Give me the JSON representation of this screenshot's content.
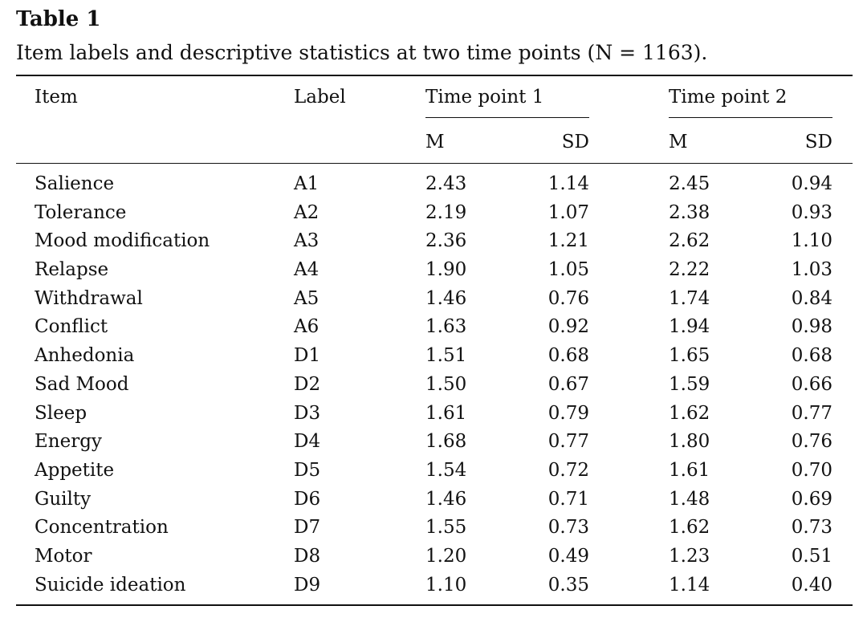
{
  "title": "Table 1",
  "caption": "Item labels and descriptive statistics at two time points (N = 1163).",
  "header": {
    "item": "Item",
    "label": "Label",
    "time_point_1": "Time point 1",
    "time_point_2": "Time point 2",
    "m1": "M",
    "sd1": "SD",
    "m2": "M",
    "sd2": "SD"
  },
  "rows": [
    {
      "item": "Salience",
      "label": "A1",
      "m1": "2.43",
      "sd1": "1.14",
      "m2": "2.45",
      "sd2": "0.94"
    },
    {
      "item": "Tolerance",
      "label": "A2",
      "m1": "2.19",
      "sd1": "1.07",
      "m2": "2.38",
      "sd2": "0.93"
    },
    {
      "item": "Mood modification",
      "label": "A3",
      "m1": "2.36",
      "sd1": "1.21",
      "m2": "2.62",
      "sd2": "1.10"
    },
    {
      "item": "Relapse",
      "label": "A4",
      "m1": "1.90",
      "sd1": "1.05",
      "m2": "2.22",
      "sd2": "1.03"
    },
    {
      "item": "Withdrawal",
      "label": "A5",
      "m1": "1.46",
      "sd1": "0.76",
      "m2": "1.74",
      "sd2": "0.84"
    },
    {
      "item": "Conflict",
      "label": "A6",
      "m1": "1.63",
      "sd1": "0.92",
      "m2": "1.94",
      "sd2": "0.98"
    },
    {
      "item": "Anhedonia",
      "label": "D1",
      "m1": "1.51",
      "sd1": "0.68",
      "m2": "1.65",
      "sd2": "0.68"
    },
    {
      "item": "Sad Mood",
      "label": "D2",
      "m1": "1.50",
      "sd1": "0.67",
      "m2": "1.59",
      "sd2": "0.66"
    },
    {
      "item": "Sleep",
      "label": "D3",
      "m1": "1.61",
      "sd1": "0.79",
      "m2": "1.62",
      "sd2": "0.77"
    },
    {
      "item": "Energy",
      "label": "D4",
      "m1": "1.68",
      "sd1": "0.77",
      "m2": "1.80",
      "sd2": "0.76"
    },
    {
      "item": "Appetite",
      "label": "D5",
      "m1": "1.54",
      "sd1": "0.72",
      "m2": "1.61",
      "sd2": "0.70"
    },
    {
      "item": "Guilty",
      "label": "D6",
      "m1": "1.46",
      "sd1": "0.71",
      "m2": "1.48",
      "sd2": "0.69"
    },
    {
      "item": "Concentration",
      "label": "D7",
      "m1": "1.55",
      "sd1": "0.73",
      "m2": "1.62",
      "sd2": "0.73"
    },
    {
      "item": "Motor",
      "label": "D8",
      "m1": "1.20",
      "sd1": "0.49",
      "m2": "1.23",
      "sd2": "0.51"
    },
    {
      "item": "Suicide ideation",
      "label": "D9",
      "m1": "1.10",
      "sd1": "0.35",
      "m2": "1.14",
      "sd2": "0.40"
    }
  ]
}
